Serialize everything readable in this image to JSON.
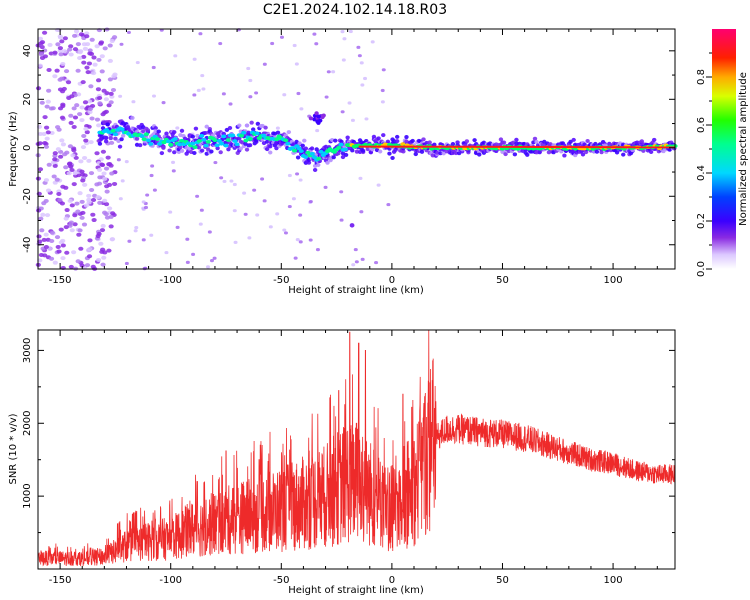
{
  "title": "C2E1.2024.102.14.18.R03",
  "colors": {
    "snr_line": "#ee2a2a",
    "colormap": [
      "#ffffff",
      "#c8a0ff",
      "#8a2be2",
      "#3a00ff",
      "#0033ff",
      "#00d0ff",
      "#00ff66",
      "#ffee00",
      "#ff8800",
      "#ff0000",
      "#ff0066"
    ]
  },
  "chart_data": [
    {
      "type": "heatmap",
      "name": "spectrogram",
      "xlabel": "Height of straight line (km)",
      "ylabel": "Frequency (Hz)",
      "xlim": [
        -160,
        128
      ],
      "ylim": [
        -50,
        49
      ],
      "xticks": [
        -150,
        -100,
        -50,
        0,
        50,
        100
      ],
      "yticks": [
        -40,
        -20,
        0,
        20,
        40
      ],
      "colorbar": {
        "label": "Normalized spectral amplitude",
        "range": [
          0,
          1
        ],
        "ticks": [
          "0.0",
          "0.2",
          "0.4",
          "0.6",
          "0.8"
        ]
      },
      "ridge": {
        "description_points": [
          [
            -130,
            6
          ],
          [
            -120,
            7
          ],
          [
            -110,
            4
          ],
          [
            -100,
            3
          ],
          [
            -90,
            2
          ],
          [
            -80,
            3
          ],
          [
            -70,
            4
          ],
          [
            -60,
            5
          ],
          [
            -50,
            3
          ],
          [
            -45,
            1
          ],
          [
            -40,
            -2
          ],
          [
            -35,
            -5
          ],
          [
            -30,
            -2
          ],
          [
            -25,
            -1
          ],
          [
            -20,
            1
          ],
          [
            -10,
            1
          ],
          [
            0,
            1
          ],
          [
            10,
            0.5
          ],
          [
            20,
            0
          ],
          [
            50,
            0
          ],
          [
            80,
            0
          ],
          [
            100,
            0
          ],
          [
            128,
            0.5
          ]
        ]
      },
      "features": {
        "noise_region_x": [
          -160,
          -125
        ],
        "echo_blob": {
          "x": -33,
          "y": 12
        },
        "isolated_point": {
          "x": -18,
          "y": -32
        }
      }
    },
    {
      "type": "line",
      "name": "snr",
      "xlabel": "Height of straight line (km)",
      "ylabel": "SNR (10 * v/v)",
      "xlim": [
        -160,
        128
      ],
      "ylim": [
        0,
        3280
      ],
      "xticks": [
        -150,
        -100,
        -50,
        0,
        50,
        100
      ],
      "yticks": [
        1000,
        2000,
        3000
      ],
      "envelope": [
        [
          -160,
          150
        ],
        [
          -140,
          140
        ],
        [
          -130,
          170
        ],
        [
          -120,
          320
        ],
        [
          -110,
          380
        ],
        [
          -100,
          420
        ],
        [
          -90,
          550
        ],
        [
          -80,
          620
        ],
        [
          -70,
          700
        ],
        [
          -60,
          750
        ],
        [
          -50,
          820
        ],
        [
          -40,
          900
        ],
        [
          -30,
          1000
        ],
        [
          -20,
          1200
        ],
        [
          -10,
          1050
        ],
        [
          -5,
          900
        ],
        [
          0,
          800
        ],
        [
          5,
          900
        ],
        [
          10,
          1100
        ],
        [
          15,
          1500
        ],
        [
          20,
          1800
        ],
        [
          25,
          1920
        ],
        [
          30,
          1920
        ],
        [
          40,
          1880
        ],
        [
          50,
          1850
        ],
        [
          60,
          1800
        ],
        [
          70,
          1700
        ],
        [
          80,
          1600
        ],
        [
          90,
          1500
        ],
        [
          100,
          1450
        ],
        [
          110,
          1350
        ],
        [
          120,
          1300
        ],
        [
          128,
          1300
        ]
      ],
      "peaks": [
        [
          -19,
          3250
        ],
        [
          -15,
          3100
        ],
        [
          -12,
          3000
        ],
        [
          -24,
          2450
        ],
        [
          -28,
          2350
        ],
        [
          -16,
          2000
        ],
        [
          5,
          2400
        ],
        [
          9,
          2220
        ],
        [
          15,
          2350
        ],
        [
          -75,
          1620
        ],
        [
          -60,
          1500
        ],
        [
          -88,
          1200
        ],
        [
          -124,
          620
        ]
      ]
    }
  ]
}
